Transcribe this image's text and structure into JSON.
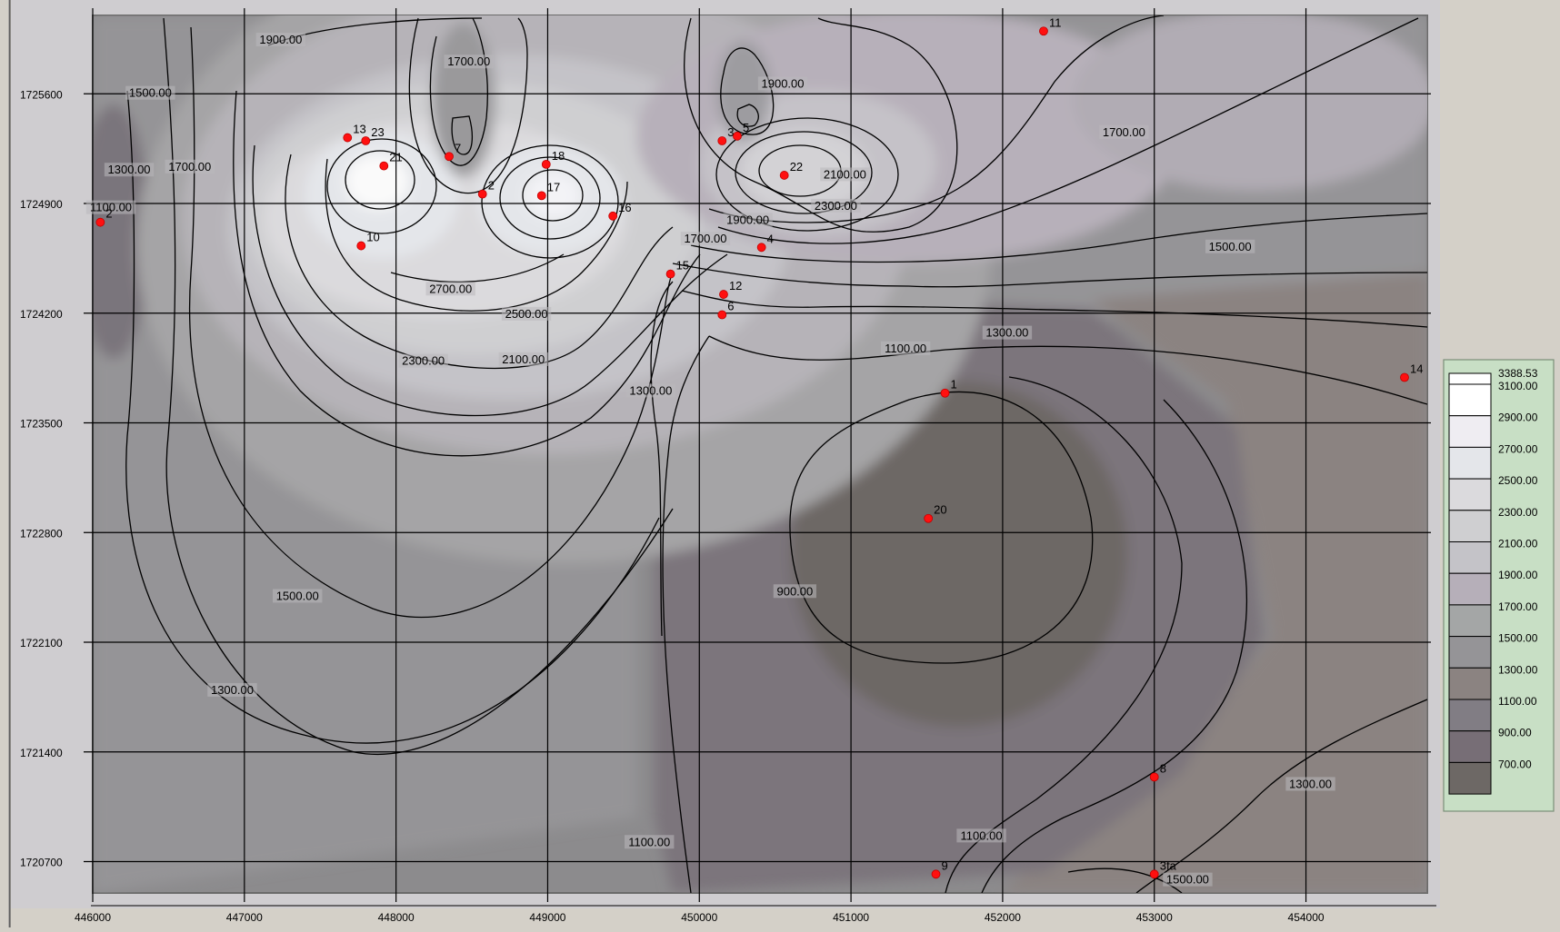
{
  "chart_data": {
    "type": "contour",
    "xlim": [
      446000,
      454800
    ],
    "ylim": [
      1720500,
      1726100
    ],
    "x_ticks": [
      "446000",
      "447000",
      "448000",
      "449000",
      "450000",
      "451000",
      "452000",
      "453000",
      "454000"
    ],
    "y_ticks": [
      "1725600",
      "1724900",
      "1724200",
      "1723500",
      "1722800",
      "1722100",
      "1721400",
      "1720700"
    ],
    "grid": true,
    "legend_position": "right",
    "legend": {
      "max_label": "3388.53",
      "levels": [
        "3100.00",
        "2900.00",
        "2700.00",
        "2500.00",
        "2300.00",
        "2100.00",
        "1900.00",
        "1700.00",
        "1500.00",
        "1300.00",
        "1100.00",
        "900.00",
        "700.00"
      ],
      "colors": [
        "#ffffff",
        "#efedf2",
        "#e4e6ea",
        "#dbdadd",
        "#cfcfd1",
        "#c4c3c8",
        "#b6afb9",
        "#a4a6a6",
        "#959497",
        "#8b8381",
        "#817d84",
        "#776e76",
        "#6d6865"
      ]
    },
    "contour_labels": [
      {
        "text": "1900.00",
        "x": 447240,
        "y": 1725920
      },
      {
        "text": "1700.00",
        "x": 448480,
        "y": 1725780
      },
      {
        "text": "1500.00",
        "x": 446380,
        "y": 1725580
      },
      {
        "text": "1300.00",
        "x": 446240,
        "y": 1725090
      },
      {
        "text": "1100.00",
        "x": 446120,
        "y": 1724850
      },
      {
        "text": "1700.00",
        "x": 446640,
        "y": 1725110
      },
      {
        "text": "1900.00",
        "x": 450550,
        "y": 1725640
      },
      {
        "text": "2100.00",
        "x": 450960,
        "y": 1725060
      },
      {
        "text": "2300.00",
        "x": 450900,
        "y": 1724860
      },
      {
        "text": "1700.00",
        "x": 452800,
        "y": 1725330
      },
      {
        "text": "1500.00",
        "x": 453500,
        "y": 1724600
      },
      {
        "text": "1900.00",
        "x": 450320,
        "y": 1724770
      },
      {
        "text": "1700.00",
        "x": 450040,
        "y": 1724650
      },
      {
        "text": "2700.00",
        "x": 448360,
        "y": 1724330
      },
      {
        "text": "2500.00",
        "x": 448860,
        "y": 1724170
      },
      {
        "text": "2300.00",
        "x": 448180,
        "y": 1723870
      },
      {
        "text": "2100.00",
        "x": 448840,
        "y": 1723880
      },
      {
        "text": "1300.00",
        "x": 449680,
        "y": 1723680
      },
      {
        "text": "1300.00",
        "x": 452030,
        "y": 1724050
      },
      {
        "text": "1100.00",
        "x": 451360,
        "y": 1723950
      },
      {
        "text": "900.00",
        "x": 450630,
        "y": 1722400
      },
      {
        "text": "1500.00",
        "x": 447350,
        "y": 1722370
      },
      {
        "text": "1300.00",
        "x": 446920,
        "y": 1721770
      },
      {
        "text": "1100.00",
        "x": 449670,
        "y": 1720800
      },
      {
        "text": "1100.00",
        "x": 451860,
        "y": 1720840
      },
      {
        "text": "1300.00",
        "x": 454030,
        "y": 1721170
      },
      {
        "text": "1500.00",
        "x": 453220,
        "y": 1720560
      }
    ],
    "wells": [
      {
        "label": "11",
        "x": 452270,
        "y": 1726000
      },
      {
        "label": "13",
        "x": 447680,
        "y": 1725320
      },
      {
        "label": "23",
        "x": 447800,
        "y": 1725300
      },
      {
        "label": "21",
        "x": 447920,
        "y": 1725140
      },
      {
        "label": "7",
        "x": 448350,
        "y": 1725200
      },
      {
        "label": "2",
        "x": 448570,
        "y": 1724960
      },
      {
        "label": "18",
        "x": 448990,
        "y": 1725150
      },
      {
        "label": "17",
        "x": 448960,
        "y": 1724950
      },
      {
        "label": "16",
        "x": 449430,
        "y": 1724820
      },
      {
        "label": "10",
        "x": 447770,
        "y": 1724630
      },
      {
        "label": "3",
        "x": 450150,
        "y": 1725300
      },
      {
        "label": "5",
        "x": 450250,
        "y": 1725330
      },
      {
        "label": "22",
        "x": 450560,
        "y": 1725080
      },
      {
        "label": "4",
        "x": 450410,
        "y": 1724620
      },
      {
        "label": "15",
        "x": 449810,
        "y": 1724450
      },
      {
        "label": "12",
        "x": 450160,
        "y": 1724320
      },
      {
        "label": "6",
        "x": 450150,
        "y": 1724190
      },
      {
        "label": "1",
        "x": 451620,
        "y": 1723690
      },
      {
        "label": "20",
        "x": 451510,
        "y": 1722890
      },
      {
        "label": "14",
        "x": 454650,
        "y": 1723790
      },
      {
        "label": "8",
        "x": 453000,
        "y": 1721240
      },
      {
        "label": "9",
        "x": 451560,
        "y": 1720620
      },
      {
        "label": "3fa",
        "x": 453000,
        "y": 1720620
      },
      {
        "label": "2",
        "x": 446050,
        "y": 1724780
      }
    ]
  }
}
